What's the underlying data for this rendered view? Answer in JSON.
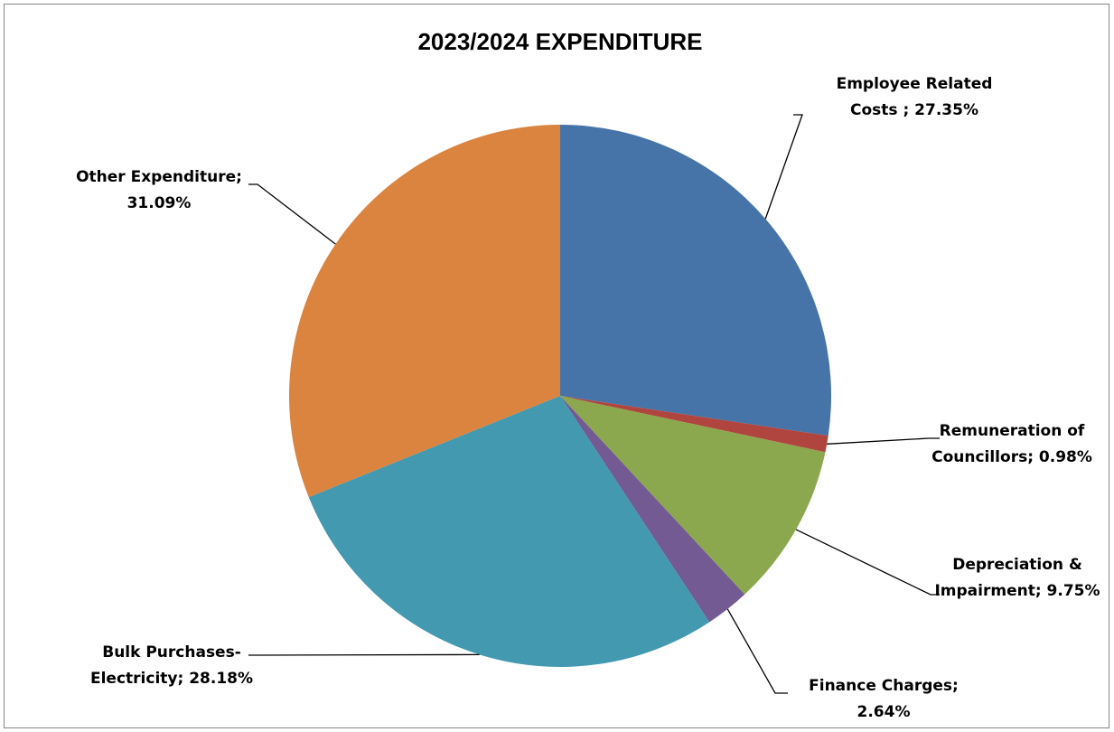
{
  "chart_data": {
    "type": "pie",
    "title": "2023/2024 EXPENDITURE",
    "slices": [
      {
        "label": "Employee Related Costs",
        "value": 27.35,
        "color": "#4674A8",
        "label_lines": [
          "Employee Related",
          "Costs ; 27.35%"
        ]
      },
      {
        "label": "Remuneration of Councillors",
        "value": 0.98,
        "color": "#B0443F",
        "label_lines": [
          "Remuneration of",
          "Councillors; 0.98%"
        ]
      },
      {
        "label": "Depreciation & Impairment",
        "value": 9.75,
        "color": "#8BA84E",
        "label_lines": [
          "Depreciation &",
          "Impairment; 9.75%"
        ]
      },
      {
        "label": "Finance Charges",
        "value": 2.64,
        "color": "#735A93",
        "label_lines": [
          "Finance Charges;",
          "2.64%"
        ]
      },
      {
        "label": "Bulk Purchases-Electricity",
        "value": 28.18,
        "color": "#4299B0",
        "label_lines": [
          "Bulk Purchases-",
          "Electricity; 28.18%"
        ]
      },
      {
        "label": "Other Expenditure",
        "value": 31.09,
        "color": "#DA843F",
        "label_lines": [
          "Other Expenditure;",
          "31.09%"
        ]
      }
    ],
    "start_angle": "12 o'clock",
    "direction": "clockwise",
    "legend": "none"
  }
}
